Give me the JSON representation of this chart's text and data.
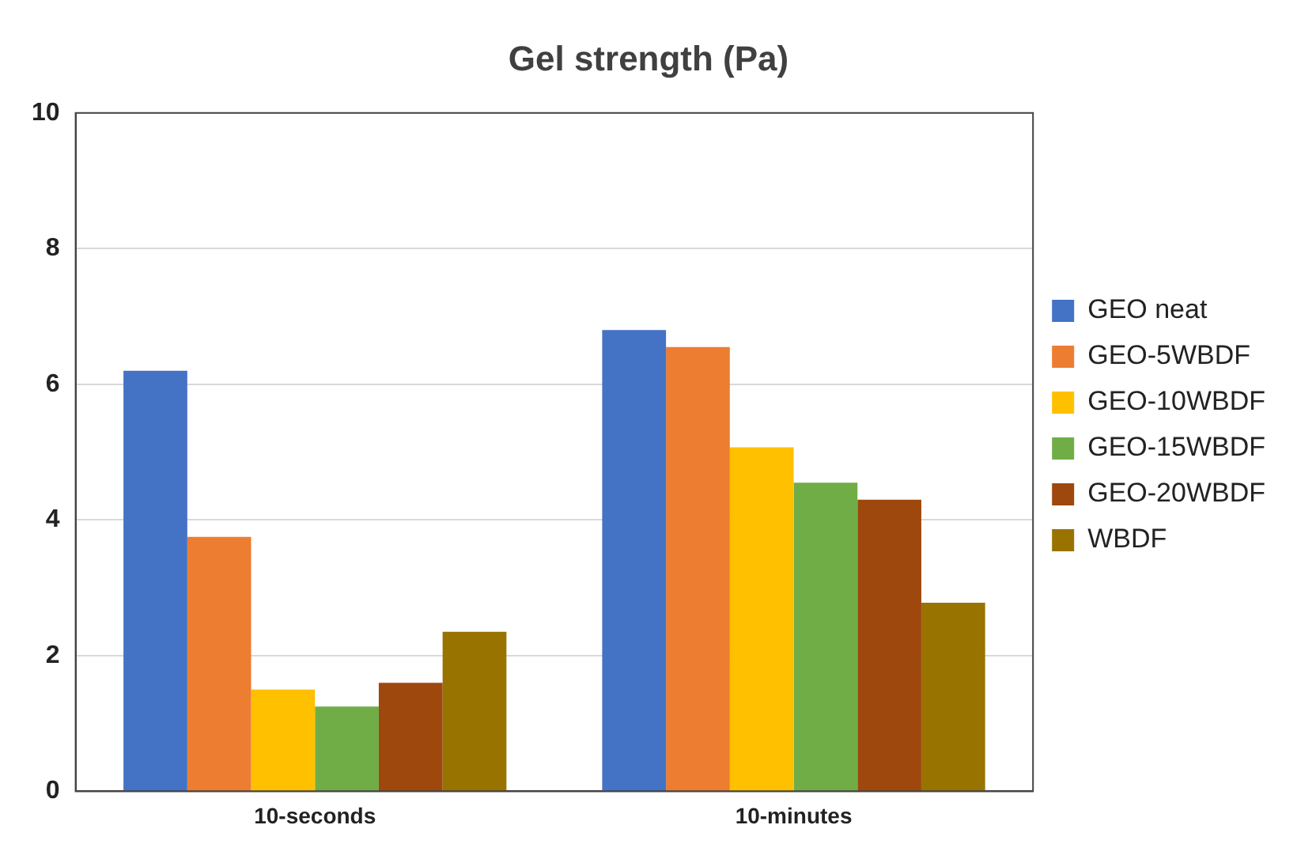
{
  "chart_data": {
    "type": "bar",
    "title": "Gel strength (Pa)",
    "categories": [
      "10-seconds",
      "10-minutes"
    ],
    "series": [
      {
        "name": "GEO neat",
        "color": "#4472c4",
        "values": [
          6.2,
          6.8
        ]
      },
      {
        "name": "GEO-5WBDF",
        "color": "#ed7d31",
        "values": [
          3.75,
          6.55
        ]
      },
      {
        "name": "GEO-10WBDF",
        "color": "#ffc000",
        "values": [
          1.5,
          5.07
        ]
      },
      {
        "name": "GEO-15WBDF",
        "color": "#70ad47",
        "values": [
          1.25,
          4.55
        ]
      },
      {
        "name": "GEO-20WBDF",
        "color": "#9e480e",
        "values": [
          1.6,
          4.3
        ]
      },
      {
        "name": "WBDF",
        "color": "#997300",
        "values": [
          2.35,
          2.78
        ]
      }
    ],
    "ylim": [
      0,
      10
    ],
    "yticks": [
      0,
      2,
      4,
      6,
      8,
      10
    ],
    "grid": "y",
    "legend": "right"
  }
}
